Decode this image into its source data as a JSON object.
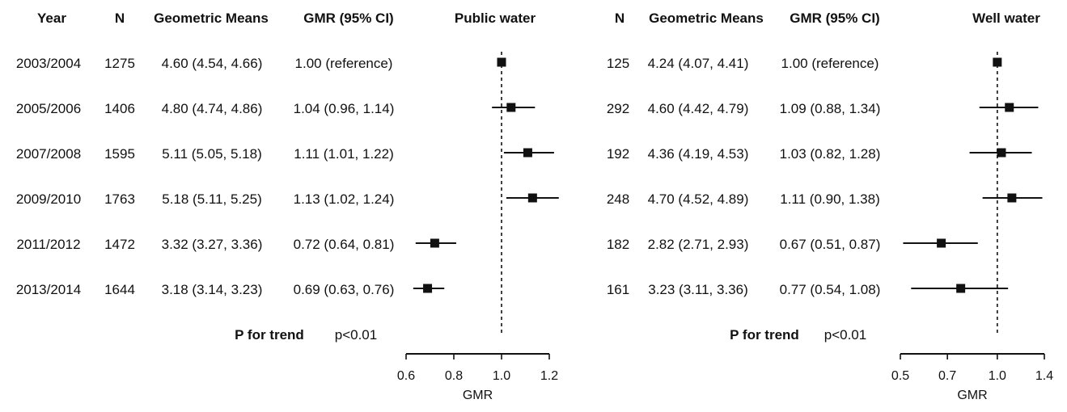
{
  "headers": {
    "year": "Year",
    "n": "N",
    "geomeans": "Geometric Means",
    "gmr": "GMR (95% CI)",
    "public_title": "Public water",
    "well_title": "Well water"
  },
  "years": [
    "2003/2004",
    "2005/2006",
    "2007/2008",
    "2009/2010",
    "2011/2012",
    "2013/2014"
  ],
  "public": {
    "n": [
      "1275",
      "1406",
      "1595",
      "1763",
      "1472",
      "1644"
    ],
    "geomeans": [
      "4.60 (4.54, 4.66)",
      "4.80 (4.74, 4.86)",
      "5.11 (5.05, 5.18)",
      "5.18 (5.11, 5.25)",
      "3.32 (3.27, 3.36)",
      "3.18 (3.14, 3.23)"
    ],
    "gmr_text": [
      "1.00 (reference)",
      "1.04 (0.96, 1.14)",
      "1.11 (1.01, 1.22)",
      "1.13 (1.02, 1.24)",
      "0.72 (0.64, 0.81)",
      "0.69 (0.63, 0.76)"
    ],
    "trend_label": "P for trend",
    "trend_value": "p<0.01"
  },
  "well": {
    "n": [
      "125",
      "292",
      "192",
      "248",
      "182",
      "161"
    ],
    "geomeans": [
      "4.24 (4.07, 4.41)",
      "4.60 (4.42, 4.79)",
      "4.36 (4.19, 4.53)",
      "4.70 (4.52, 4.89)",
      "2.82 (2.71, 2.93)",
      "3.23 (3.11, 3.36)"
    ],
    "gmr_text": [
      "1.00 (reference)",
      "1.09 (0.88, 1.34)",
      "1.03 (0.82, 1.28)",
      "1.11 (0.90, 1.38)",
      "0.67 (0.51, 0.87)",
      "0.77 (0.54, 1.08)"
    ],
    "trend_label": "P for trend",
    "trend_value": "p<0.01"
  },
  "chart_data": [
    {
      "type": "forest",
      "title": "Public water",
      "xlabel": "GMR",
      "xlim": [
        0.6,
        1.2
      ],
      "xticks": [
        0.6,
        0.8,
        1.0,
        1.2
      ],
      "xtick_labels": [
        "0.6",
        "0.8",
        "1.0",
        "1.2"
      ],
      "reference_line": 1.0,
      "categories": [
        "2003/2004",
        "2005/2006",
        "2007/2008",
        "2009/2010",
        "2011/2012",
        "2013/2014"
      ],
      "values": [
        1.0,
        1.04,
        1.11,
        1.13,
        0.72,
        0.69
      ],
      "lower": [
        1.0,
        0.96,
        1.01,
        1.02,
        0.64,
        0.63
      ],
      "upper": [
        1.0,
        1.14,
        1.22,
        1.24,
        0.81,
        0.76
      ]
    },
    {
      "type": "forest",
      "title": "Well water",
      "xlabel": "GMR",
      "xlim": [
        0.5,
        1.4
      ],
      "xticks": [
        0.5,
        0.7,
        1.0,
        1.4
      ],
      "xtick_labels": [
        "0.5",
        "0.7",
        "1.0",
        "1.4"
      ],
      "log_scale": true,
      "reference_line": 1.0,
      "categories": [
        "2003/2004",
        "2005/2006",
        "2007/2008",
        "2009/2010",
        "2011/2012",
        "2013/2014"
      ],
      "values": [
        1.0,
        1.09,
        1.03,
        1.11,
        0.67,
        0.77
      ],
      "lower": [
        1.0,
        0.88,
        0.82,
        0.9,
        0.51,
        0.54
      ],
      "upper": [
        1.0,
        1.34,
        1.28,
        1.38,
        0.87,
        1.08
      ]
    }
  ]
}
